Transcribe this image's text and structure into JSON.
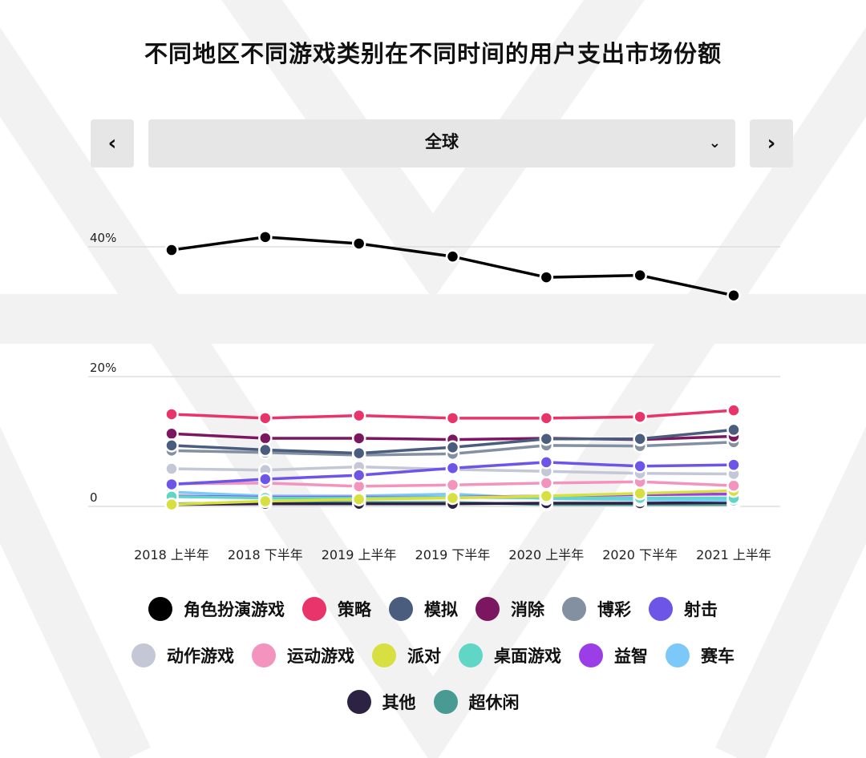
{
  "header": {
    "title": "不同地区不同游戏类别在不同时间的用户支出市场份额"
  },
  "region_selector": {
    "value": "全球",
    "prev_icon": "chevron-left-icon",
    "next_icon": "chevron-right-icon",
    "dropdown_icon": "chevron-down-icon"
  },
  "chart_data": {
    "type": "line",
    "title": "不同地区不同游戏类别在不同时间的用户支出市场份额",
    "xlabel": "",
    "ylabel": "",
    "categories": [
      "2018 上半年",
      "2018 下半年",
      "2019 上半年",
      "2019 下半年",
      "2020 上半年",
      "2020 下半年",
      "2021 上半年"
    ],
    "ylim": [
      0,
      40
    ],
    "y_ticks": [
      0,
      20,
      40
    ],
    "y_tick_labels": [
      "0",
      "20%",
      "40%"
    ],
    "grid": true,
    "legend_position": "bottom",
    "series": [
      {
        "name": "角色扮演游戏",
        "color": "#000000",
        "values": [
          39.5,
          41.5,
          40.5,
          38.5,
          35.3,
          35.6,
          32.5
        ]
      },
      {
        "name": "策略",
        "color": "#e8336b",
        "values": [
          14.2,
          13.6,
          14.0,
          13.6,
          13.6,
          13.8,
          14.8
        ]
      },
      {
        "name": "模拟",
        "color": "#4a5d7e",
        "values": [
          9.4,
          8.7,
          8.2,
          9.1,
          10.4,
          10.4,
          11.8
        ]
      },
      {
        "name": "消除",
        "color": "#7d1660",
        "values": [
          11.2,
          10.5,
          10.5,
          10.3,
          10.5,
          10.3,
          10.8
        ]
      },
      {
        "name": "博彩",
        "color": "#8390a2",
        "values": [
          8.6,
          8.3,
          7.9,
          8.1,
          9.4,
          9.3,
          9.9
        ]
      },
      {
        "name": "射击",
        "color": "#6d55e8",
        "values": [
          3.4,
          4.2,
          4.8,
          5.9,
          6.8,
          6.2,
          6.4
        ]
      },
      {
        "name": "动作游戏",
        "color": "#c4c8d6",
        "values": [
          5.8,
          5.6,
          6.1,
          5.7,
          5.4,
          5.1,
          5.0
        ]
      },
      {
        "name": "运动游戏",
        "color": "#f294bd",
        "values": [
          3.5,
          3.6,
          3.1,
          3.3,
          3.6,
          3.8,
          3.2
        ]
      },
      {
        "name": "派对",
        "color": "#d7e040",
        "values": [
          0.3,
          0.8,
          1.1,
          1.3,
          1.6,
          2.0,
          2.4
        ]
      },
      {
        "name": "桌面游戏",
        "color": "#5fd6c6",
        "values": [
          1.5,
          1.3,
          1.3,
          1.4,
          1.3,
          1.3,
          1.3
        ]
      },
      {
        "name": "益智",
        "color": "#9b3ee8",
        "values": [
          1.6,
          1.4,
          1.4,
          1.4,
          1.6,
          1.8,
          1.9
        ]
      },
      {
        "name": "赛车",
        "color": "#7cc8f8",
        "values": [
          2.2,
          1.6,
          1.6,
          1.9,
          1.2,
          1.0,
          0.9
        ]
      },
      {
        "name": "其他",
        "color": "#2d2244",
        "values": [
          0.3,
          0.4,
          0.4,
          0.4,
          0.5,
          0.5,
          0.6
        ]
      },
      {
        "name": "超休闲",
        "color": "#4a9a94",
        "values": [
          0.4,
          0.6,
          0.6,
          0.6,
          0.3,
          0.3,
          0.3
        ]
      }
    ]
  }
}
